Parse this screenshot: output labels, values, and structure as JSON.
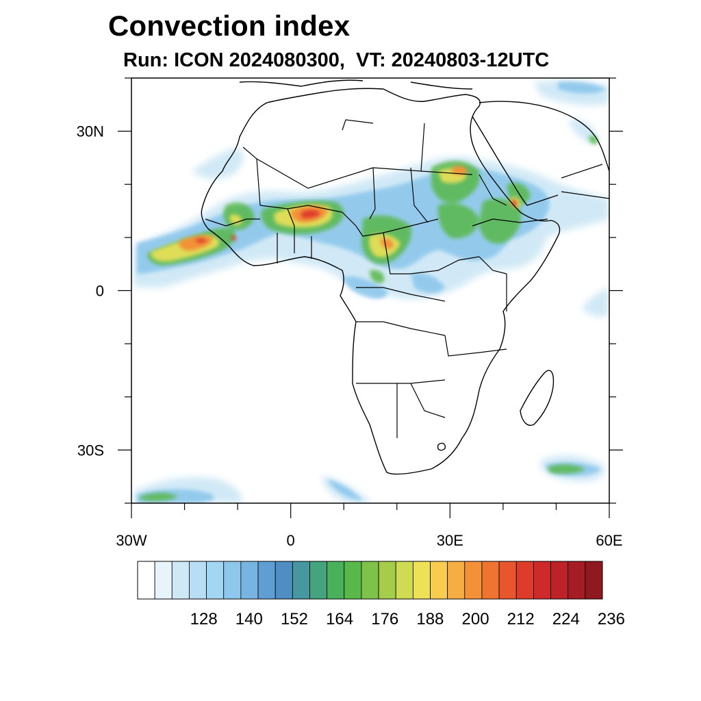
{
  "title": "Convection index",
  "subtitle": "Run: ICON 2024080300,  VT: 20240803-12UTC",
  "map": {
    "projection": "equirectangular",
    "lon_range": [
      -30,
      60
    ],
    "lat_range": [
      -40,
      40
    ],
    "lat_ticks": [
      {
        "value": 30,
        "label": "30N"
      },
      {
        "value": 0,
        "label": "0"
      },
      {
        "value": -30,
        "label": "30S"
      }
    ],
    "lon_ticks": [
      {
        "value": -30,
        "label": "30W"
      },
      {
        "value": 0,
        "label": "0"
      },
      {
        "value": 30,
        "label": "30E"
      },
      {
        "value": 60,
        "label": "60E"
      }
    ]
  },
  "colorbar": {
    "colors": [
      "#ffffff",
      "#e8f4fb",
      "#cfe8f6",
      "#b7def4",
      "#a2d6f3",
      "#8dc7ec",
      "#77b4e2",
      "#5f9ed3",
      "#4f8ec2",
      "#46979f",
      "#44a47e",
      "#49b05c",
      "#58b848",
      "#7fc24a",
      "#a6cc4c",
      "#cfdc51",
      "#ede157",
      "#f8cc4f",
      "#f6ae43",
      "#f39138",
      "#ef7432",
      "#e7562d",
      "#de3c2b",
      "#cf2a2a",
      "#bc2228",
      "#a61c24",
      "#8e1a1f"
    ],
    "labels": [
      "128",
      "140",
      "152",
      "164",
      "176",
      "188",
      "200",
      "212",
      "224",
      "236"
    ]
  }
}
